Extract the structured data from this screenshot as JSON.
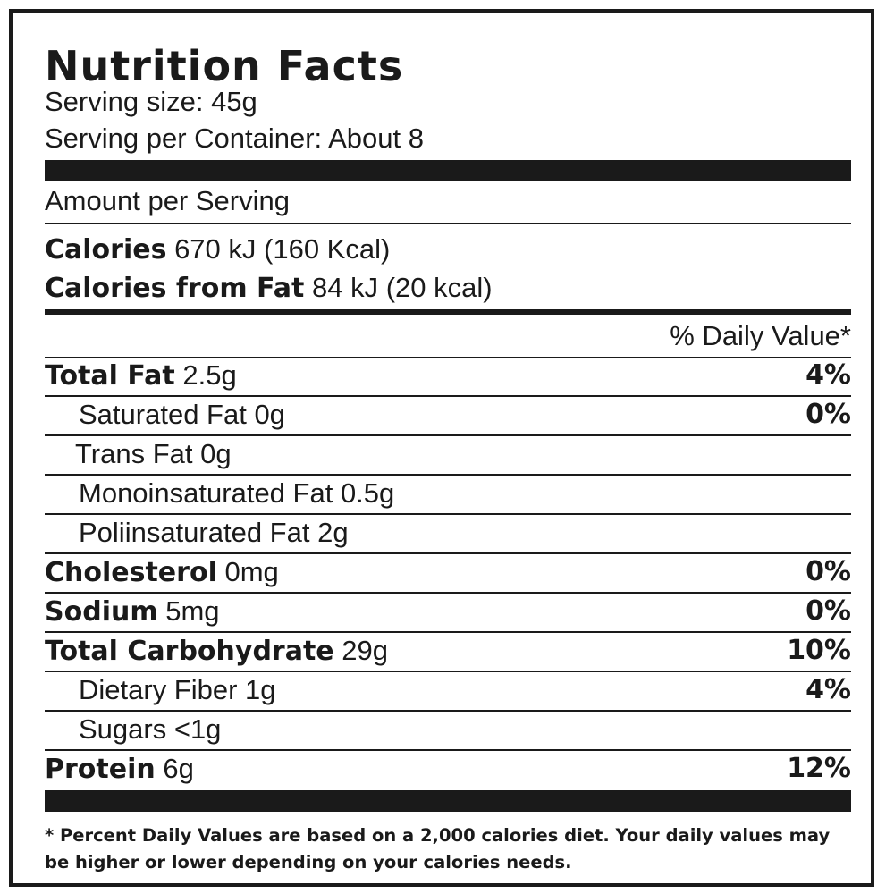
{
  "label": {
    "title": "Nutrition Facts",
    "serving_size": "Serving size: 45g",
    "servings_per_container": "Serving per Container: About 8",
    "amount_per_serving": "Amount per Serving",
    "calories": {
      "name": "Calories",
      "value": "670 kJ (160 Kcal)"
    },
    "calories_from_fat": {
      "name": "Calories from Fat",
      "value": "84 kJ (20 kcal)"
    },
    "daily_value_header": "% Daily Value*",
    "nutrients": [
      {
        "name": "Total Fat",
        "amount": "2.5g",
        "dv": "4%"
      },
      {
        "name": "Saturated Fat 0g",
        "dv": "0%"
      },
      {
        "name": "Trans Fat 0g"
      },
      {
        "name": "Monoinsaturated Fat 0.5g"
      },
      {
        "name": "Poliinsaturated Fat 2g"
      },
      {
        "name": "Cholesterol",
        "amount": "0mg",
        "dv": "0%"
      },
      {
        "name": "Sodium",
        "amount": "5mg",
        "dv": "0%"
      },
      {
        "name": "Total Carbohydrate",
        "amount": "29g",
        "dv": "10%"
      },
      {
        "name": "Dietary Fiber 1g",
        "dv": "4%"
      },
      {
        "name": "Sugars <1g"
      },
      {
        "name": "Protein",
        "amount": "6g",
        "dv": "12%"
      }
    ],
    "footnote": "* Percent Daily Values are based on a 2,000 calories diet. Your daily values may be higher or lower depending on your calories needs."
  }
}
